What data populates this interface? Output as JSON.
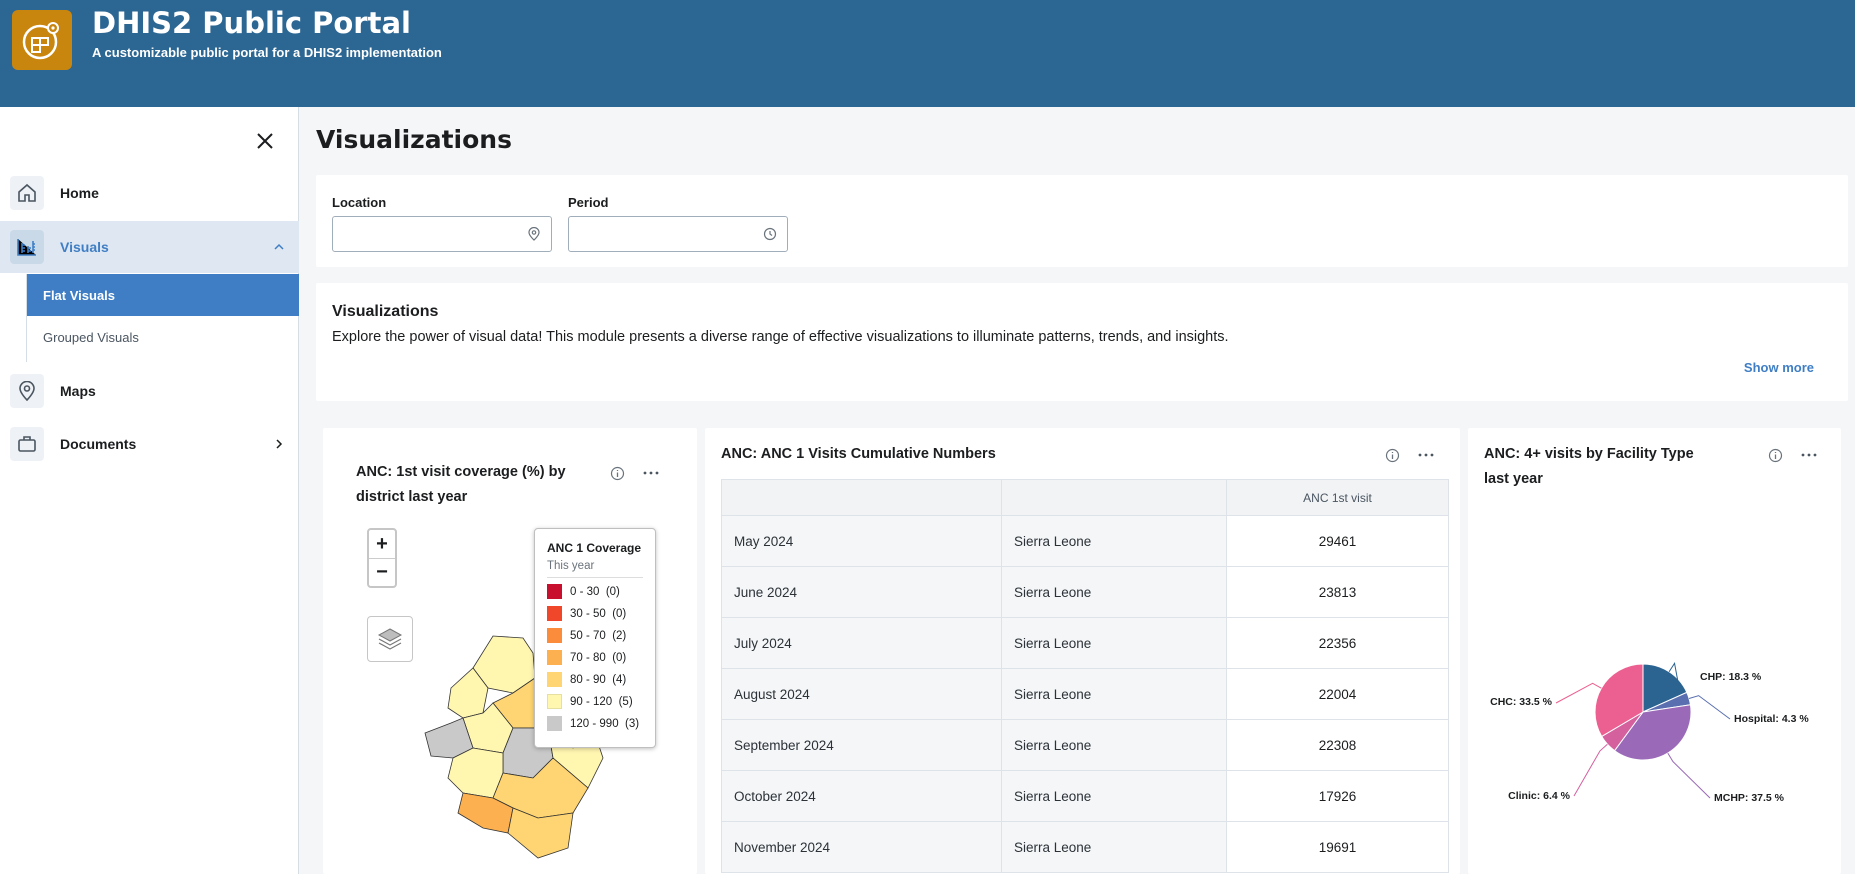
{
  "header": {
    "title": "DHIS2 Public Portal",
    "subtitle": "A customizable public portal for a DHIS2 implementation",
    "logo_icon": "portal-logo-icon",
    "bg_color": "#2c6693",
    "logo_color": "#c9860f"
  },
  "sidebar": {
    "items": [
      {
        "label": "Home",
        "icon": "home-icon"
      },
      {
        "label": "Visuals",
        "icon": "bar-chart-icon",
        "expanded": true
      },
      {
        "label": "Maps",
        "icon": "map-pin-icon"
      },
      {
        "label": "Documents",
        "icon": "briefcase-icon"
      }
    ],
    "sub_items": [
      {
        "label": "Flat Visuals",
        "active": true
      },
      {
        "label": "Grouped Visuals",
        "active": false
      }
    ]
  },
  "page": {
    "title": "Visualizations"
  },
  "filters": {
    "location_label": "Location",
    "location_value": "",
    "period_label": "Period",
    "period_value": ""
  },
  "intro": {
    "title": "Visualizations",
    "text": "Explore the power of visual data! This module presents a diverse range of effective visualizations to illuminate patterns, trends, and insights.",
    "show_more": "Show more"
  },
  "map_viz": {
    "title": "ANC: 1st visit coverage (%) by district last year",
    "zoom_in": "+",
    "zoom_out": "−",
    "legend": {
      "title": "ANC 1 Coverage",
      "subtitle": "This year",
      "items": [
        {
          "label": "0 - 30",
          "count": "(0)",
          "color": "#c8102e"
        },
        {
          "label": "30 - 50",
          "count": "(0)",
          "color": "#f0472b"
        },
        {
          "label": "50 - 70",
          "count": "(2)",
          "color": "#fb8c3c"
        },
        {
          "label": "70 - 80",
          "count": "(0)",
          "color": "#fcb04f"
        },
        {
          "label": "80 - 90",
          "count": "(4)",
          "color": "#fed572"
        },
        {
          "label": "90 - 120",
          "count": "(5)",
          "color": "#fff6b0"
        },
        {
          "label": "120 - 990",
          "count": "(3)",
          "color": "#c9c9c9"
        }
      ]
    }
  },
  "table_viz": {
    "title": "ANC: ANC 1 Visits Cumulative Numbers",
    "column_header": "ANC 1st visit",
    "rows": [
      {
        "period": "May 2024",
        "org": "Sierra Leone",
        "value": "29461"
      },
      {
        "period": "June 2024",
        "org": "Sierra Leone",
        "value": "23813"
      },
      {
        "period": "July 2024",
        "org": "Sierra Leone",
        "value": "22356"
      },
      {
        "period": "August 2024",
        "org": "Sierra Leone",
        "value": "22004"
      },
      {
        "period": "September 2024",
        "org": "Sierra Leone",
        "value": "22308"
      },
      {
        "period": "October 2024",
        "org": "Sierra Leone",
        "value": "17926"
      },
      {
        "period": "November 2024",
        "org": "Sierra Leone",
        "value": "19691"
      }
    ]
  },
  "pie_viz": {
    "title": "ANC: 4+ visits by Facility Type last year",
    "chart_data": {
      "type": "pie",
      "slices": [
        {
          "name": "CHP",
          "value": 18.3,
          "label": "CHP: 18.3 %",
          "color": "#2b6391"
        },
        {
          "name": "Hospital",
          "value": 4.3,
          "label": "Hospital: 4.3 %",
          "color": "#5a6fb0"
        },
        {
          "name": "MCHP",
          "value": 37.5,
          "label": "MCHP: 37.5 %",
          "color": "#9a6ab8"
        },
        {
          "name": "Clinic",
          "value": 6.4,
          "label": "Clinic: 6.4 %",
          "color": "#d4609d"
        },
        {
          "name": "CHC",
          "value": 33.5,
          "label": "CHC: 33.5 %",
          "color": "#ec5f91"
        }
      ]
    }
  }
}
